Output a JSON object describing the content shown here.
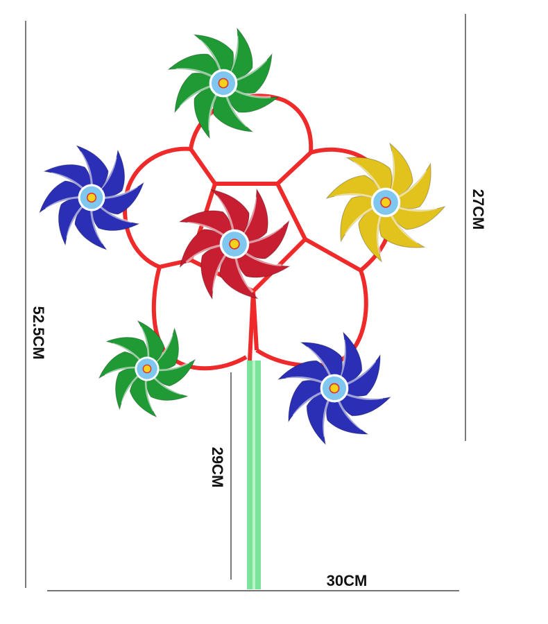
{
  "dimensions": {
    "total_height": "52.5CM",
    "frame_height": "27CM",
    "stick_length": "29CM",
    "width": "30CM"
  }
}
